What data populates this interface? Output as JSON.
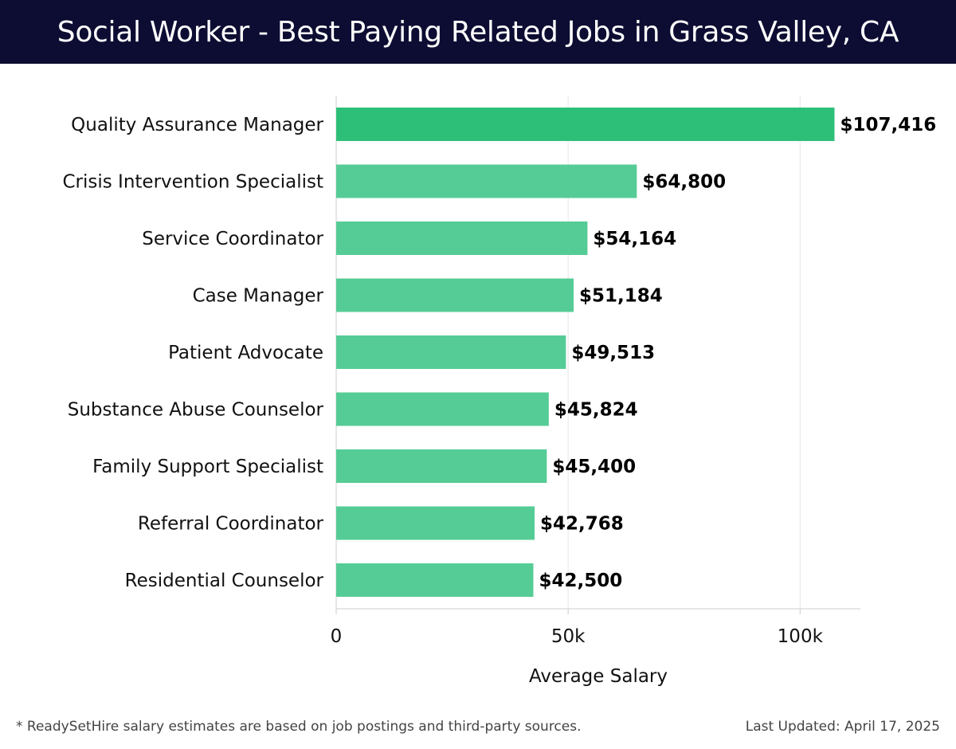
{
  "page": {
    "title": "Social Worker - Best Paying Related Jobs in Grass Valley, CA",
    "footnote": "* ReadySetHire salary estimates are based on job postings and third-party sources.",
    "last_updated": "Last Updated: April 17, 2025"
  },
  "colors": {
    "header_bg": "#0d0d33",
    "bar_top": "#2dbf78",
    "bar": "#55cc95",
    "grid": "#e6e6e6",
    "axis": "#cccccc"
  },
  "chart_data": {
    "type": "bar",
    "orientation": "horizontal",
    "categories": [
      "Quality Assurance Manager",
      "Crisis Intervention Specialist",
      "Service Coordinator",
      "Case Manager",
      "Patient Advocate",
      "Substance Abuse Counselor",
      "Family Support Specialist",
      "Referral Coordinator",
      "Residential Counselor"
    ],
    "values": [
      107416,
      64800,
      54164,
      51184,
      49513,
      45824,
      45400,
      42768,
      42500
    ],
    "value_labels": [
      "$107,416",
      "$64,800",
      "$54,164",
      "$51,184",
      "$49,513",
      "$45,824",
      "$45,400",
      "$42,768",
      "$42,500"
    ],
    "xlabel": "Average Salary",
    "ylabel": "",
    "xlim": [
      0,
      113000
    ],
    "xticks": [
      0,
      50000,
      100000
    ],
    "xtick_labels": [
      "0",
      "50k",
      "100k"
    ],
    "grid": true,
    "legend": "none"
  }
}
